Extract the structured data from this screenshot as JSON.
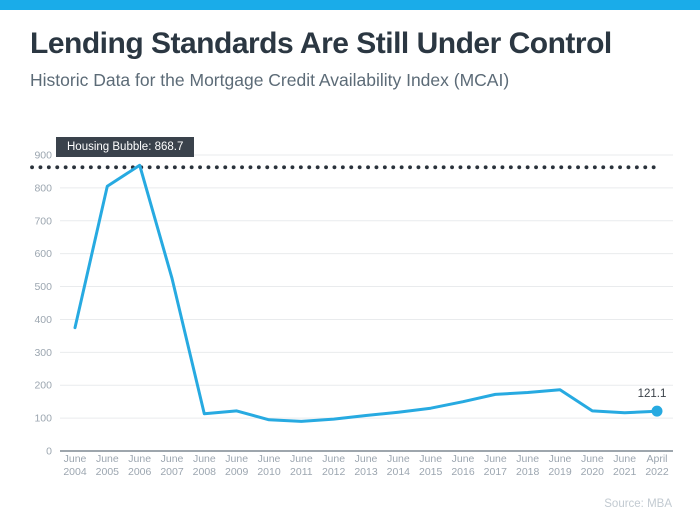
{
  "header": {
    "title": "Lending Standards Are Still Under Control",
    "subtitle": "Historic Data for the Mortgage Credit Availability Index (MCAI)"
  },
  "chart_data": {
    "type": "line",
    "title": "Historic Data for the Mortgage Credit Availability Index (MCAI)",
    "categories": [
      "June 2004",
      "June 2005",
      "June 2006",
      "June 2007",
      "June 2008",
      "June 2009",
      "June 2010",
      "June 2011",
      "June 2012",
      "June 2013",
      "June 2014",
      "June 2015",
      "June 2016",
      "June 2017",
      "June 2018",
      "June 2019",
      "June 2020",
      "June 2021",
      "April 2022"
    ],
    "values": [
      375,
      805,
      868.7,
      525,
      113,
      122,
      95,
      90,
      97,
      108,
      118,
      130,
      150,
      172,
      178,
      186,
      122,
      116,
      121.1
    ],
    "xlabel": "",
    "ylabel": "",
    "ylim": [
      0,
      900
    ],
    "yticks": [
      0,
      100,
      200,
      300,
      400,
      500,
      600,
      700,
      800,
      900
    ],
    "grid": true,
    "legend": "none",
    "annotation": {
      "label": "Housing Bubble: 868.7",
      "value": 868.7
    },
    "end_label": "121.1",
    "end_value": 121.1
  },
  "source": "Source: MBA",
  "colors": {
    "accent_bar": "#1AACE9",
    "line": "#27AAE1",
    "callout_bg": "#3A424C",
    "callout_text": "#FFFFFF",
    "dotted_line": "#2A323B",
    "title_text": "#2B3742",
    "subtitle_text": "#5C6B77",
    "axis_text": "#9CA6B0",
    "gridline": "#E9EBED",
    "axis_line": "#9EA6AD",
    "end_label_text": "#3A4148",
    "source_text": "#C2CAD1"
  }
}
